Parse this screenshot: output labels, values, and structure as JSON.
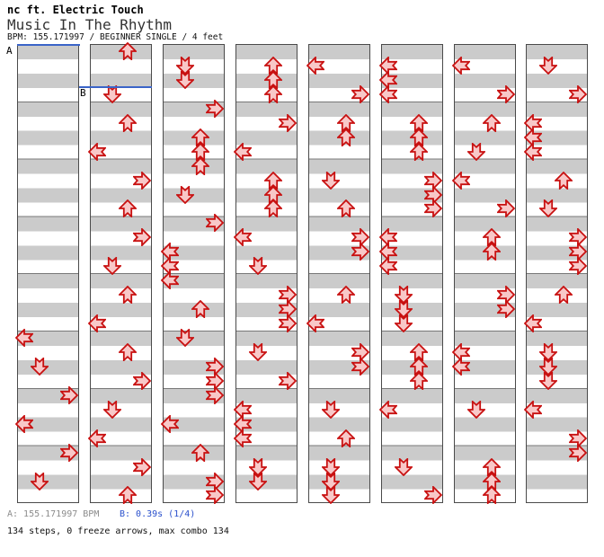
{
  "header": {
    "title": "nc ft. Electric Touch",
    "song": "Music In The Rhythm",
    "info": "BPM: 155.171997 / BEGINNER SINGLE / 4 feet"
  },
  "markers": {
    "a_label": "A",
    "b_label": "B",
    "a_col": 0,
    "a_row": 0,
    "b_col": 1,
    "b_row": 3
  },
  "footer": {
    "marker_a": "A: 155.171997 BPM",
    "marker_b": "B: 0.39s (1/4)",
    "summary": "134 steps, 0 freeze arrows, max combo 134"
  },
  "colors": {
    "band": "#cbcbcb",
    "border": "#4a4a4a",
    "measure_line": "#787878",
    "marker_blue": "#3a64c8",
    "footer_gray": "#8c8c8c",
    "footer_blue": "#2a50cc",
    "arrow_stroke": "#c81010",
    "arrow_fill": "#f8c8c8"
  },
  "chart": {
    "type": "ddr-step-chart",
    "columns": 8,
    "measures_per_column": 8,
    "beats_per_measure": 4,
    "rows_per_column": 32,
    "lanes": [
      "L",
      "D",
      "U",
      "R"
    ],
    "lane_names": {
      "L": "left",
      "D": "down",
      "U": "up",
      "R": "right"
    },
    "total_steps": 134,
    "freeze_arrows": 0,
    "max_combo": 134,
    "notes": [
      [
        [
          20,
          "L"
        ],
        [
          22,
          "D"
        ],
        [
          24,
          "R"
        ],
        [
          26,
          "L"
        ],
        [
          28,
          "R"
        ],
        [
          30,
          "D"
        ]
      ],
      [
        [
          0,
          "U"
        ],
        [
          3,
          "D"
        ],
        [
          5,
          "U"
        ],
        [
          7,
          "L"
        ],
        [
          9,
          "R"
        ],
        [
          11,
          "U"
        ],
        [
          13,
          "R"
        ],
        [
          15,
          "D"
        ],
        [
          17,
          "U"
        ],
        [
          19,
          "L"
        ],
        [
          21,
          "U"
        ],
        [
          23,
          "R"
        ],
        [
          25,
          "D"
        ],
        [
          27,
          "L"
        ],
        [
          29,
          "R"
        ],
        [
          31,
          "U"
        ]
      ],
      [
        [
          1,
          "D"
        ],
        [
          2,
          "D"
        ],
        [
          4,
          "R"
        ],
        [
          6,
          "U"
        ],
        [
          7,
          "U"
        ],
        [
          8,
          "U"
        ],
        [
          10,
          "D"
        ],
        [
          12,
          "R"
        ],
        [
          14,
          "L"
        ],
        [
          15,
          "L"
        ],
        [
          16,
          "L"
        ],
        [
          18,
          "U"
        ],
        [
          20,
          "D"
        ],
        [
          22,
          "R"
        ],
        [
          23,
          "R"
        ],
        [
          24,
          "R"
        ],
        [
          26,
          "L"
        ],
        [
          28,
          "U"
        ],
        [
          30,
          "R"
        ],
        [
          31,
          "R"
        ]
      ],
      [
        [
          1,
          "U"
        ],
        [
          2,
          "U"
        ],
        [
          3,
          "U"
        ],
        [
          5,
          "R"
        ],
        [
          7,
          "L"
        ],
        [
          9,
          "U"
        ],
        [
          10,
          "U"
        ],
        [
          11,
          "U"
        ],
        [
          13,
          "L"
        ],
        [
          15,
          "D"
        ],
        [
          17,
          "R"
        ],
        [
          18,
          "R"
        ],
        [
          19,
          "R"
        ],
        [
          21,
          "D"
        ],
        [
          23,
          "R"
        ],
        [
          25,
          "L"
        ],
        [
          26,
          "L"
        ],
        [
          27,
          "L"
        ],
        [
          29,
          "D"
        ],
        [
          30,
          "D"
        ]
      ],
      [
        [
          1,
          "L"
        ],
        [
          3,
          "R"
        ],
        [
          5,
          "U"
        ],
        [
          6,
          "U"
        ],
        [
          9,
          "D"
        ],
        [
          11,
          "U"
        ],
        [
          13,
          "R"
        ],
        [
          14,
          "R"
        ],
        [
          17,
          "U"
        ],
        [
          19,
          "L"
        ],
        [
          21,
          "R"
        ],
        [
          22,
          "R"
        ],
        [
          25,
          "D"
        ],
        [
          27,
          "U"
        ],
        [
          29,
          "D"
        ],
        [
          30,
          "D"
        ],
        [
          31,
          "D"
        ]
      ],
      [
        [
          1,
          "L"
        ],
        [
          2,
          "L"
        ],
        [
          3,
          "L"
        ],
        [
          5,
          "U"
        ],
        [
          6,
          "U"
        ],
        [
          7,
          "U"
        ],
        [
          9,
          "R"
        ],
        [
          10,
          "R"
        ],
        [
          11,
          "R"
        ],
        [
          13,
          "L"
        ],
        [
          14,
          "L"
        ],
        [
          15,
          "L"
        ],
        [
          17,
          "D"
        ],
        [
          18,
          "D"
        ],
        [
          19,
          "D"
        ],
        [
          21,
          "U"
        ],
        [
          22,
          "U"
        ],
        [
          23,
          "U"
        ],
        [
          25,
          "L"
        ],
        [
          29,
          "D"
        ],
        [
          31,
          "R"
        ]
      ],
      [
        [
          1,
          "L"
        ],
        [
          3,
          "R"
        ],
        [
          5,
          "U"
        ],
        [
          7,
          "D"
        ],
        [
          9,
          "L"
        ],
        [
          11,
          "R"
        ],
        [
          13,
          "U"
        ],
        [
          14,
          "U"
        ],
        [
          17,
          "R"
        ],
        [
          18,
          "R"
        ],
        [
          21,
          "L"
        ],
        [
          22,
          "L"
        ],
        [
          25,
          "D"
        ],
        [
          29,
          "U"
        ],
        [
          30,
          "U"
        ],
        [
          31,
          "U"
        ]
      ],
      [
        [
          1,
          "D"
        ],
        [
          3,
          "R"
        ],
        [
          5,
          "L"
        ],
        [
          6,
          "L"
        ],
        [
          7,
          "L"
        ],
        [
          9,
          "U"
        ],
        [
          11,
          "D"
        ],
        [
          13,
          "R"
        ],
        [
          14,
          "R"
        ],
        [
          15,
          "R"
        ],
        [
          17,
          "U"
        ],
        [
          19,
          "L"
        ],
        [
          21,
          "D"
        ],
        [
          22,
          "D"
        ],
        [
          23,
          "D"
        ],
        [
          25,
          "L"
        ],
        [
          27,
          "R"
        ],
        [
          28,
          "R"
        ]
      ]
    ]
  }
}
